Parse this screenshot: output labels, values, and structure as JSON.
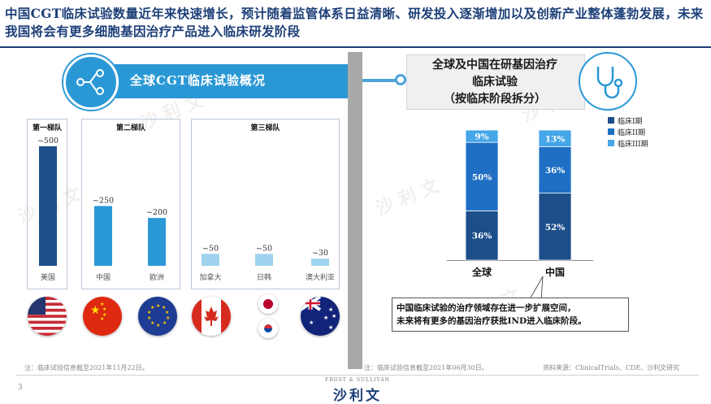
{
  "header": {
    "title": "中国CGT临床试验数量近年来快速增长，预计随着监管体系日益清晰、研发投入逐渐增加以及创新产业整体蓬勃发展，未来我国将会有更多细胞基因治疗产品进入临床研发阶段"
  },
  "left_panel": {
    "banner": "全球CGT临床试验概况",
    "tiers": [
      {
        "label": "第一梯队"
      },
      {
        "label": "第二梯队"
      },
      {
        "label": "第三梯队"
      }
    ],
    "footnote": "注：临床试验信息截至2021年11月22日。"
  },
  "right_panel": {
    "box_lines": [
      "全球及中国在研基因治疗",
      "临床试验",
      "（按临床阶段拆分）"
    ],
    "callout_lines": [
      "中国临床试验的治疗领域存在进一步扩展空间，",
      "未来将有更多的基因治疗获批IND进入临床阶段。"
    ],
    "footnote": "注：临床试验信息截至2021年06月30日。",
    "source": "资料来源：ClinicalTrials、CDE、沙利文研究"
  },
  "footer": {
    "page_number": "3",
    "brand_small": "FROST & SULLIVAN",
    "brand": "沙利文"
  },
  "colors": {
    "dark_navy": "#1c4f8a",
    "mid_blue": "#2b98d6",
    "light_blue": "#9fd3ef",
    "stack_phase1": "#1c4f8a",
    "stack_phase2": "#1f6fc4",
    "stack_phase3": "#45a6e8"
  },
  "chart_data": [
    {
      "type": "bar",
      "categories": [
        "美国",
        "中国",
        "欧洲",
        "加拿大",
        "日韩",
        "澳大利亚"
      ],
      "values": [
        500,
        250,
        200,
        50,
        50,
        30
      ],
      "value_labels": [
        "~500",
        "~250",
        "~200",
        "~50",
        "~50",
        "~30"
      ],
      "ylim": [
        0,
        520
      ]
    },
    {
      "type": "bar",
      "stacked": true,
      "categories": [
        "全球",
        "中国"
      ],
      "series": [
        {
          "name": "临床I期",
          "values": [
            36,
            52
          ]
        },
        {
          "name": "临床II期",
          "values": [
            50,
            36
          ]
        },
        {
          "name": "临床III期",
          "values": [
            9,
            13
          ]
        }
      ],
      "unit": "%",
      "legend": "top-right"
    }
  ]
}
